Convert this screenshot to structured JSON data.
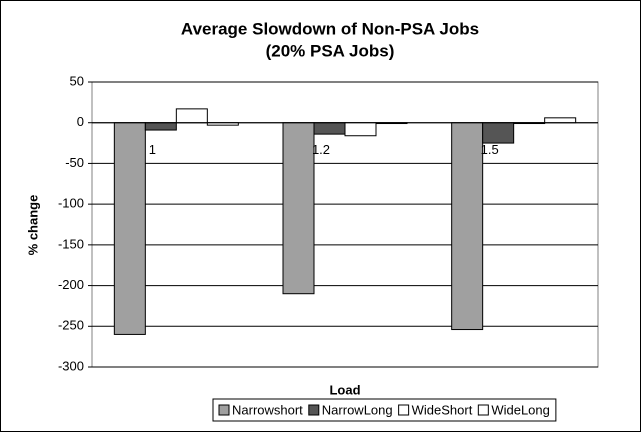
{
  "chart_data": {
    "type": "bar",
    "title": "Average Slowdown of Non-PSA Jobs",
    "subtitle": "(20% PSA Jobs)",
    "x_label": "Load",
    "y_label": "% change",
    "categories": [
      "1",
      "1.2",
      "1.5"
    ],
    "series": [
      {
        "name": "Narrowshort",
        "color": "#a0a0a0",
        "values": [
          -260,
          -210,
          -254
        ]
      },
      {
        "name": "NarrowLong",
        "color": "#555555",
        "values": [
          -9,
          -14,
          -25
        ]
      },
      {
        "name": "WideShort",
        "color": "#ffffff",
        "values": [
          17,
          -16,
          -1
        ]
      },
      {
        "name": "WideLong",
        "color": "#ffffff",
        "values": [
          -3,
          -1,
          6
        ]
      }
    ],
    "ylim": [
      -300,
      50
    ],
    "yticks": [
      -300,
      -250,
      -200,
      -150,
      -100,
      -50,
      0,
      50
    ],
    "grid": true,
    "legend": "bottom"
  }
}
